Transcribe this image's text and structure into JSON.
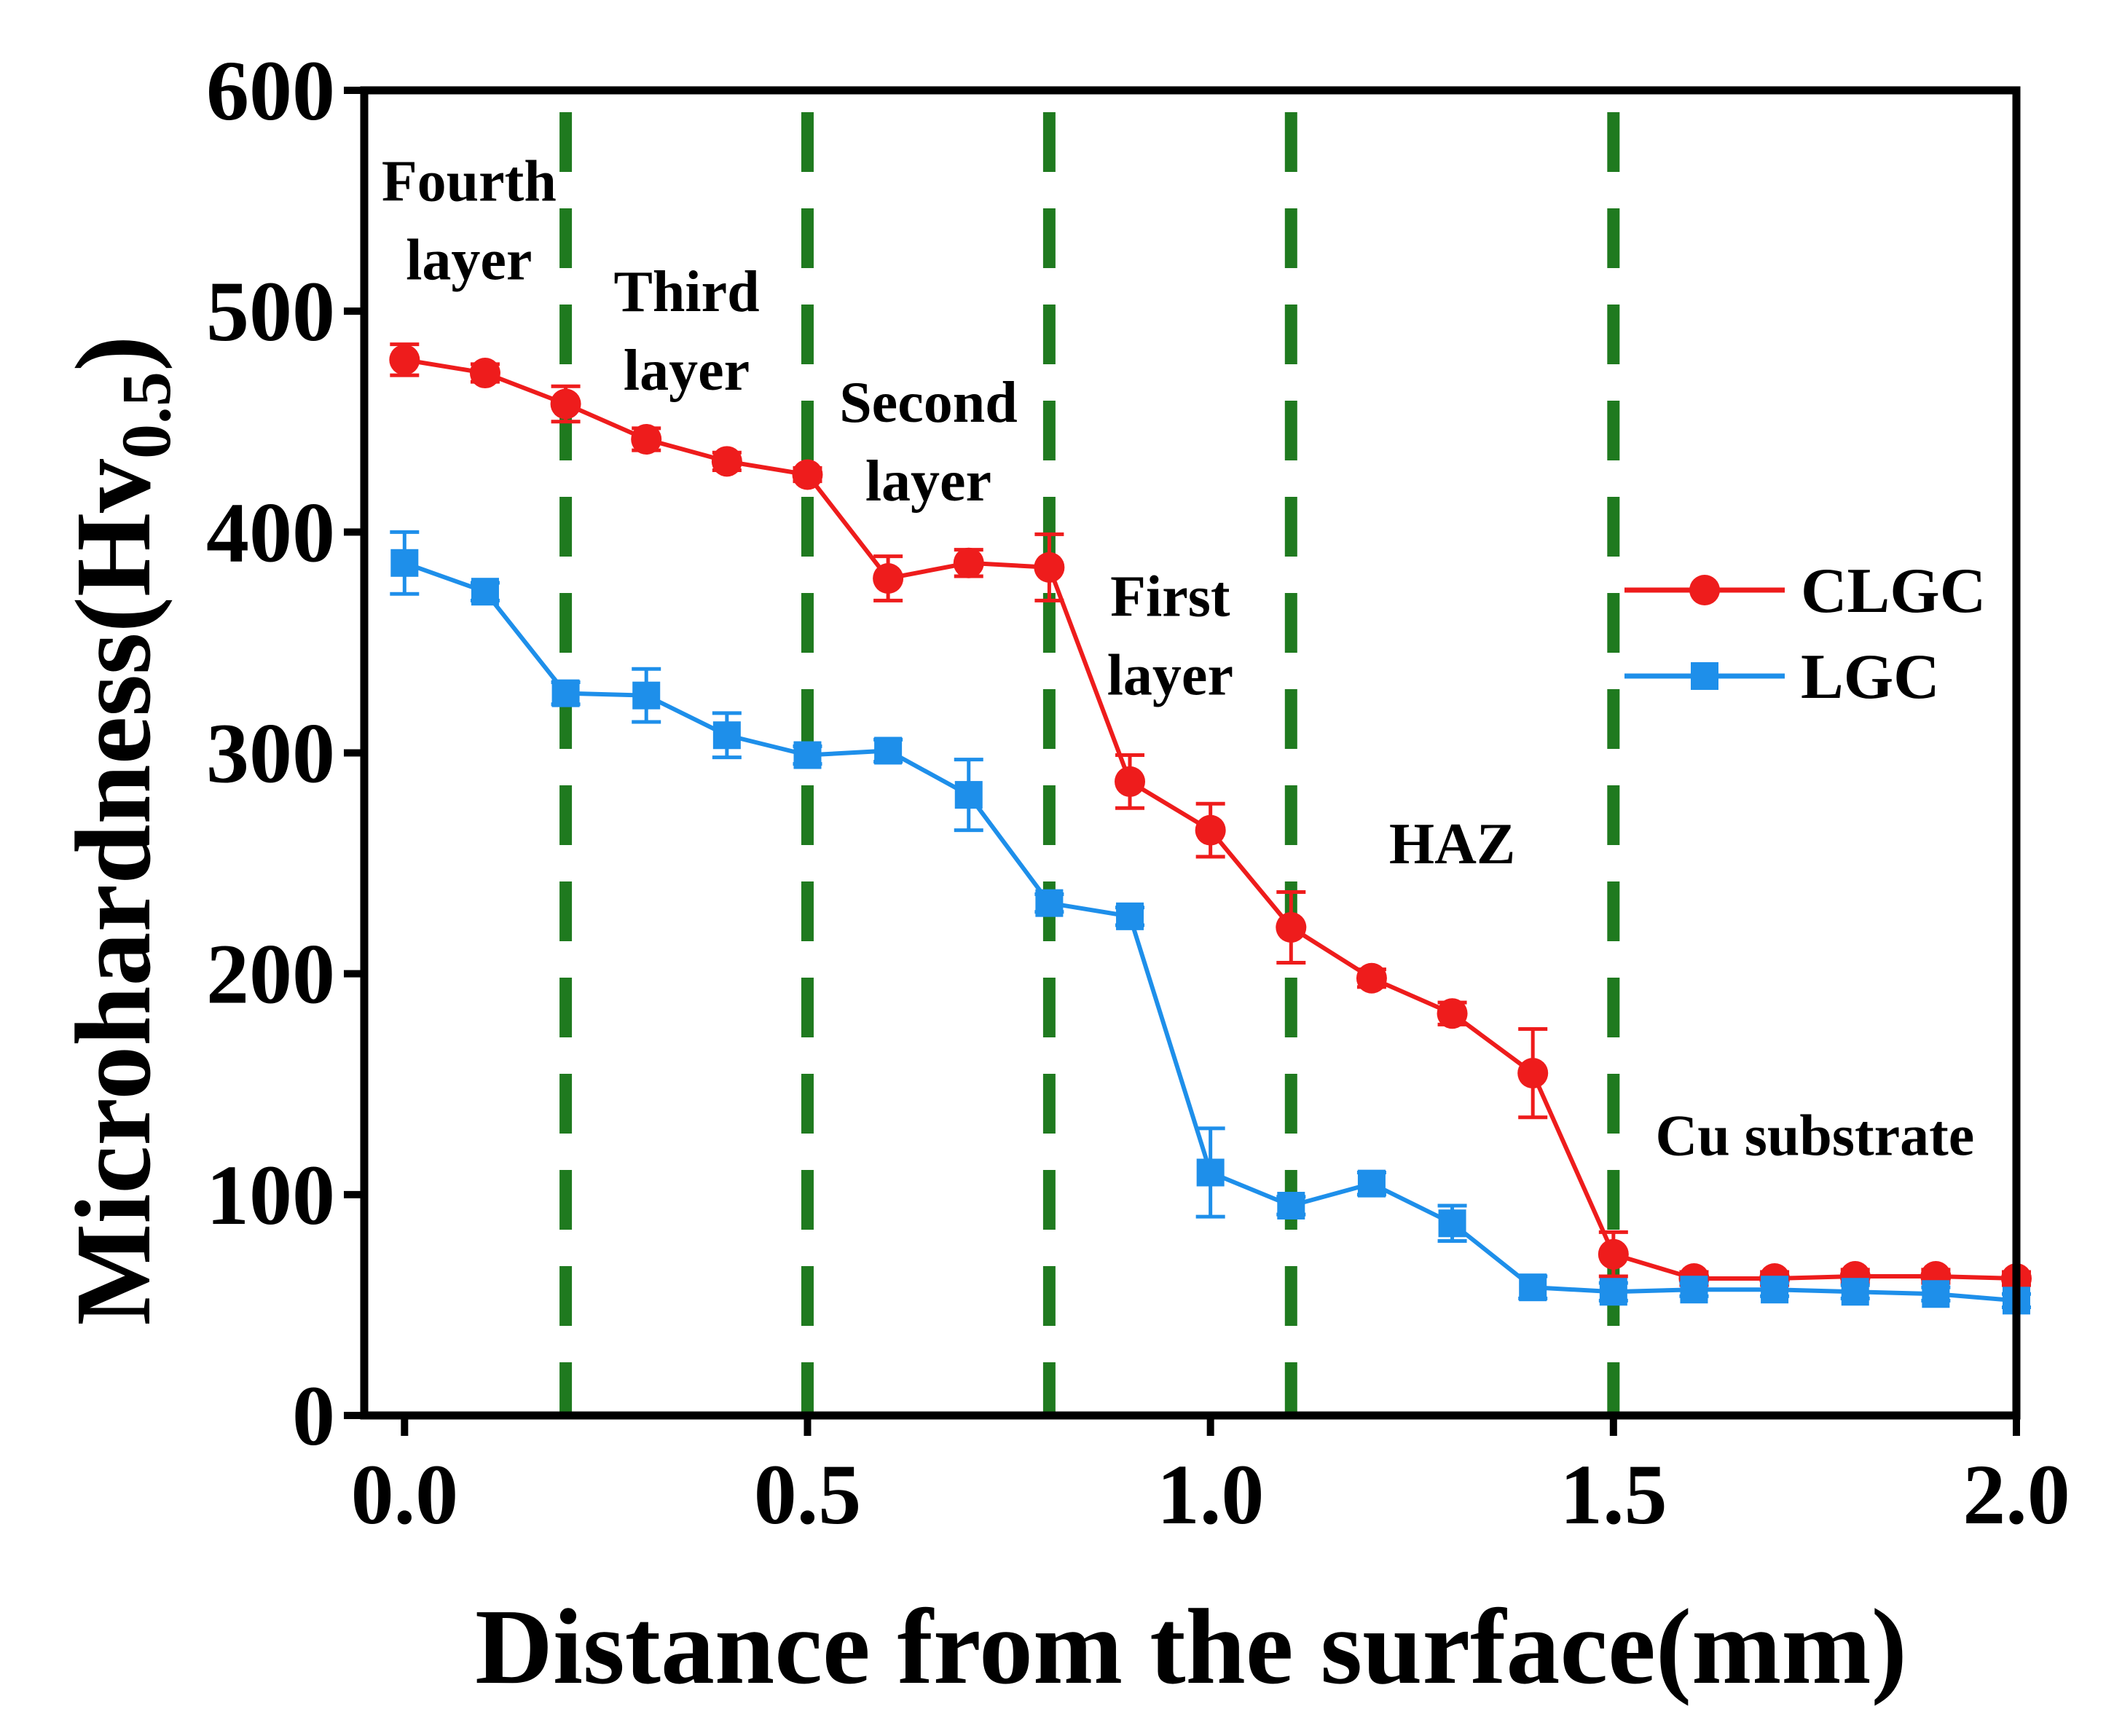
{
  "chart_data": {
    "type": "line",
    "title": "",
    "xlabel": "Distance from the surface(mm)",
    "ylabel": {
      "main": "Microhardness(Hv",
      "subscript": "0.5",
      "close": ")"
    },
    "xlim": [
      -0.05,
      2.0
    ],
    "ylim": [
      0,
      600
    ],
    "xticks": [
      0.0,
      0.5,
      1.0,
      1.5,
      2.0
    ],
    "xtick_labels": [
      "0.0",
      "0.5",
      "1.0",
      "1.5",
      "2.0"
    ],
    "yticks": [
      0,
      100,
      200,
      300,
      400,
      500,
      600
    ],
    "ytick_labels": [
      "0",
      "100",
      "200",
      "300",
      "400",
      "500",
      "600"
    ],
    "grid": false,
    "boundaries": [
      0.2,
      0.5,
      0.8,
      1.1,
      1.5
    ],
    "boundary_color": "#1f7a1f",
    "regions": [
      {
        "name": "fourth-layer",
        "lines": [
          "Fourth",
          "layer"
        ],
        "x": 0.08,
        "y": 550
      },
      {
        "name": "third-layer",
        "lines": [
          "Third",
          "layer"
        ],
        "x": 0.35,
        "y": 500
      },
      {
        "name": "second-layer",
        "lines": [
          "Second",
          "layer"
        ],
        "x": 0.65,
        "y": 450
      },
      {
        "name": "first-layer",
        "lines": [
          "First",
          "layer"
        ],
        "x": 0.95,
        "y": 362
      },
      {
        "name": "haz",
        "lines": [
          "HAZ"
        ],
        "x": 1.3,
        "y": 250
      },
      {
        "name": "cu-substrate",
        "lines": [
          "Cu substrate"
        ],
        "x": 1.75,
        "y": 118
      }
    ],
    "legend": {
      "position": "right",
      "entries": [
        "CLGC",
        "LGC"
      ]
    },
    "series": [
      {
        "name": "CLGC",
        "color": "#ee1c1c",
        "marker": "circle",
        "x": [
          0.0,
          0.1,
          0.2,
          0.3,
          0.4,
          0.5,
          0.6,
          0.7,
          0.8,
          0.9,
          1.0,
          1.1,
          1.2,
          1.3,
          1.4,
          1.5,
          1.6,
          1.7,
          1.8,
          1.9,
          2.0
        ],
        "y": [
          478,
          472,
          458,
          442,
          432,
          426,
          379,
          386,
          384,
          287,
          265,
          221,
          198,
          182,
          155,
          73,
          62,
          62,
          63,
          63,
          62
        ],
        "err": [
          7,
          4,
          8,
          5,
          4,
          3,
          10,
          6,
          15,
          12,
          12,
          16,
          4,
          5,
          20,
          10,
          3,
          3,
          3,
          3,
          3
        ]
      },
      {
        "name": "LGC",
        "color": "#1e8fea",
        "marker": "square",
        "x": [
          0.0,
          0.1,
          0.2,
          0.3,
          0.4,
          0.5,
          0.6,
          0.7,
          0.8,
          0.9,
          1.0,
          1.1,
          1.2,
          1.3,
          1.4,
          1.5,
          1.6,
          1.7,
          1.8,
          1.9,
          2.0
        ],
        "y": [
          386,
          373,
          327,
          326,
          308,
          299,
          301,
          281,
          232,
          226,
          110,
          95,
          105,
          87,
          58,
          56,
          57,
          57,
          56,
          55,
          52
        ],
        "err": [
          14,
          4,
          5,
          12,
          10,
          4,
          5,
          16,
          4,
          4,
          20,
          4,
          5,
          8,
          5,
          4,
          3,
          3,
          3,
          3,
          3
        ]
      }
    ]
  }
}
